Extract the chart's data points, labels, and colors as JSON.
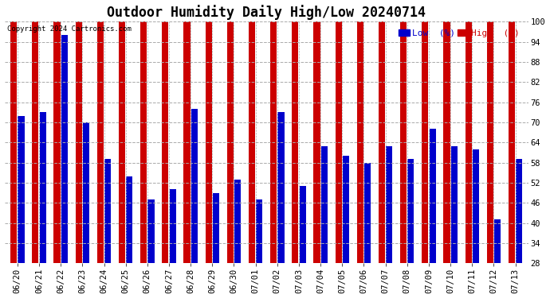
{
  "title": "Outdoor Humidity Daily High/Low 20240714",
  "copyright": "Copyright 2024 Cartronics.com",
  "legend_low": "Low  (%)",
  "legend_high": "High  (%)",
  "dates": [
    "06/20",
    "06/21",
    "06/22",
    "06/23",
    "06/24",
    "06/25",
    "06/26",
    "06/27",
    "06/28",
    "06/29",
    "06/30",
    "07/01",
    "07/02",
    "07/03",
    "07/04",
    "07/05",
    "07/06",
    "07/07",
    "07/08",
    "07/09",
    "07/10",
    "07/11",
    "07/12",
    "07/13"
  ],
  "high_values": [
    100,
    100,
    100,
    100,
    100,
    100,
    100,
    100,
    100,
    100,
    100,
    100,
    100,
    100,
    100,
    100,
    100,
    100,
    100,
    100,
    100,
    100,
    100,
    100
  ],
  "low_values": [
    72,
    73,
    96,
    70,
    59,
    54,
    47,
    50,
    74,
    49,
    53,
    47,
    73,
    51,
    63,
    60,
    58,
    63,
    59,
    68,
    63,
    62,
    41,
    59
  ],
  "bar_color_high": "#cc0000",
  "bar_color_low": "#0000cc",
  "bg_color": "#ffffff",
  "ylim_min": 28,
  "ylim_max": 100,
  "yticks": [
    28,
    34,
    40,
    46,
    52,
    58,
    64,
    70,
    76,
    82,
    88,
    94,
    100
  ],
  "grid_color": "#aaaaaa",
  "title_fontsize": 12,
  "tick_fontsize": 7.5
}
